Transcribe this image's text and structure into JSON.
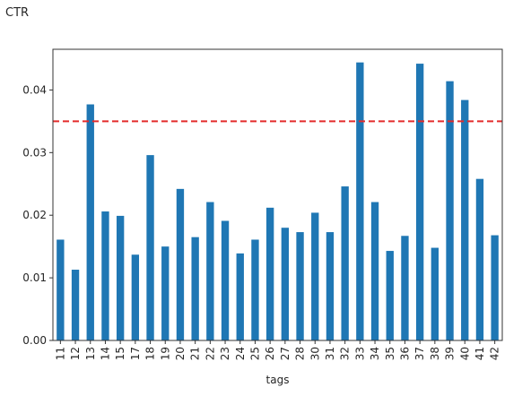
{
  "chart_data": {
    "type": "bar",
    "title": "CTR",
    "xlabel": "tags",
    "ylabel": "",
    "categories": [
      "11",
      "12",
      "13",
      "14",
      "15",
      "17",
      "18",
      "19",
      "20",
      "21",
      "22",
      "23",
      "24",
      "25",
      "26",
      "27",
      "28",
      "30",
      "31",
      "32",
      "33",
      "34",
      "35",
      "36",
      "37",
      "38",
      "39",
      "40",
      "41",
      "42"
    ],
    "values": [
      0.0161,
      0.0113,
      0.0377,
      0.0206,
      0.0199,
      0.0137,
      0.0296,
      0.015,
      0.0242,
      0.0165,
      0.0221,
      0.0191,
      0.0139,
      0.0161,
      0.0212,
      0.018,
      0.0173,
      0.0204,
      0.0173,
      0.0246,
      0.0444,
      0.0221,
      0.0143,
      0.0167,
      0.0442,
      0.0148,
      0.0414,
      0.0384,
      0.0258,
      0.0168
    ],
    "reference_line": {
      "value": 0.035,
      "style": "dashed",
      "color": "#e32b2b"
    },
    "ylim": [
      0,
      0.0465
    ],
    "yticks": [
      "0.00",
      "0.01",
      "0.02",
      "0.03",
      "0.04"
    ],
    "ytick_values": [
      0,
      0.01,
      0.02,
      0.03,
      0.04
    ],
    "bar_color": "#1f77b4",
    "grid": false,
    "legend": "none"
  }
}
